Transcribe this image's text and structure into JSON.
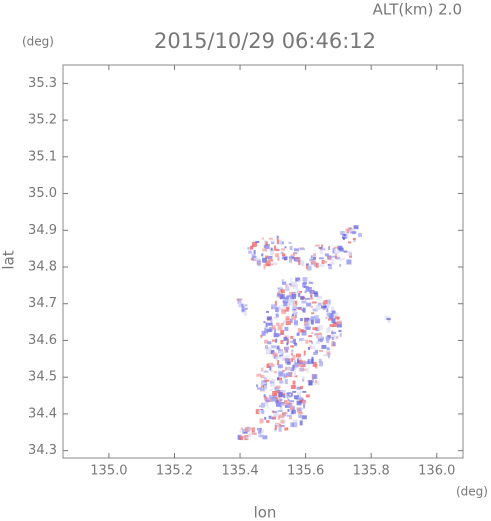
{
  "chart_data": {
    "type": "scatter",
    "title": "2015/10/29 06:46:12",
    "subtitle": "ALT(km) 2.0",
    "x_label": "lon",
    "y_label": "lat",
    "x_unit": "(deg)",
    "y_unit": "(deg)",
    "xlim": [
      134.86,
      136.08
    ],
    "ylim": [
      34.28,
      35.35
    ],
    "xticks": [
      {
        "value": 135.0,
        "label": "135.0"
      },
      135.2,
      135.4,
      135.6,
      135.8,
      {
        "value": 136.0,
        "label": "136.0"
      }
    ],
    "yticks": [
      34.3,
      34.4,
      34.5,
      34.6,
      34.7,
      34.8,
      34.9,
      {
        "value": 35.0,
        "label": "35.0"
      },
      35.1,
      35.2,
      35.3
    ]
  }
}
